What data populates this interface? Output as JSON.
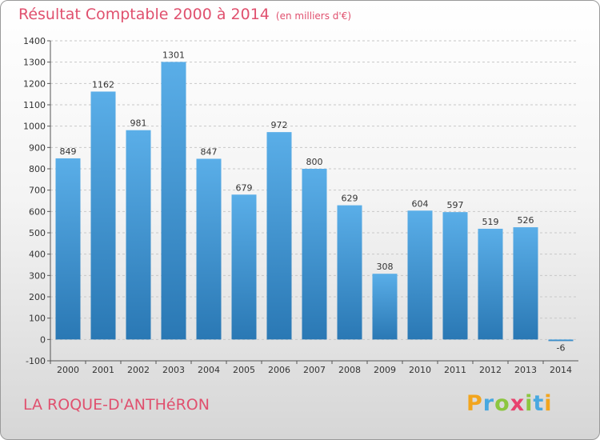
{
  "header": {
    "title": "Résultat Comptable 2000 à 2014",
    "subtitle": "(en milliers d'€)"
  },
  "footer": {
    "commune": "LA ROQUE-D'ANTHéRON",
    "logo_letters": [
      "P",
      "r",
      "o",
      "x",
      "i",
      "t",
      "i"
    ]
  },
  "colors": {
    "bar_top": "#5aaee8",
    "bar_bottom": "#2a78b4",
    "title": "#e0506e"
  },
  "chart_data": {
    "type": "bar",
    "title": "Résultat Comptable 2000 à 2014",
    "categories": [
      "2000",
      "2001",
      "2002",
      "2003",
      "2004",
      "2005",
      "2006",
      "2007",
      "2008",
      "2009",
      "2010",
      "2011",
      "2012",
      "2013",
      "2014"
    ],
    "values": [
      849,
      1162,
      981,
      1301,
      847,
      679,
      972,
      800,
      629,
      308,
      604,
      597,
      519,
      526,
      -6
    ],
    "ylim": [
      -100,
      1400
    ],
    "yticks": [
      -100,
      0,
      100,
      200,
      300,
      400,
      500,
      600,
      700,
      800,
      900,
      1000,
      1100,
      1200,
      1300,
      1400
    ],
    "grid": "horizontal dashed",
    "xlabel": "",
    "ylabel": ""
  }
}
